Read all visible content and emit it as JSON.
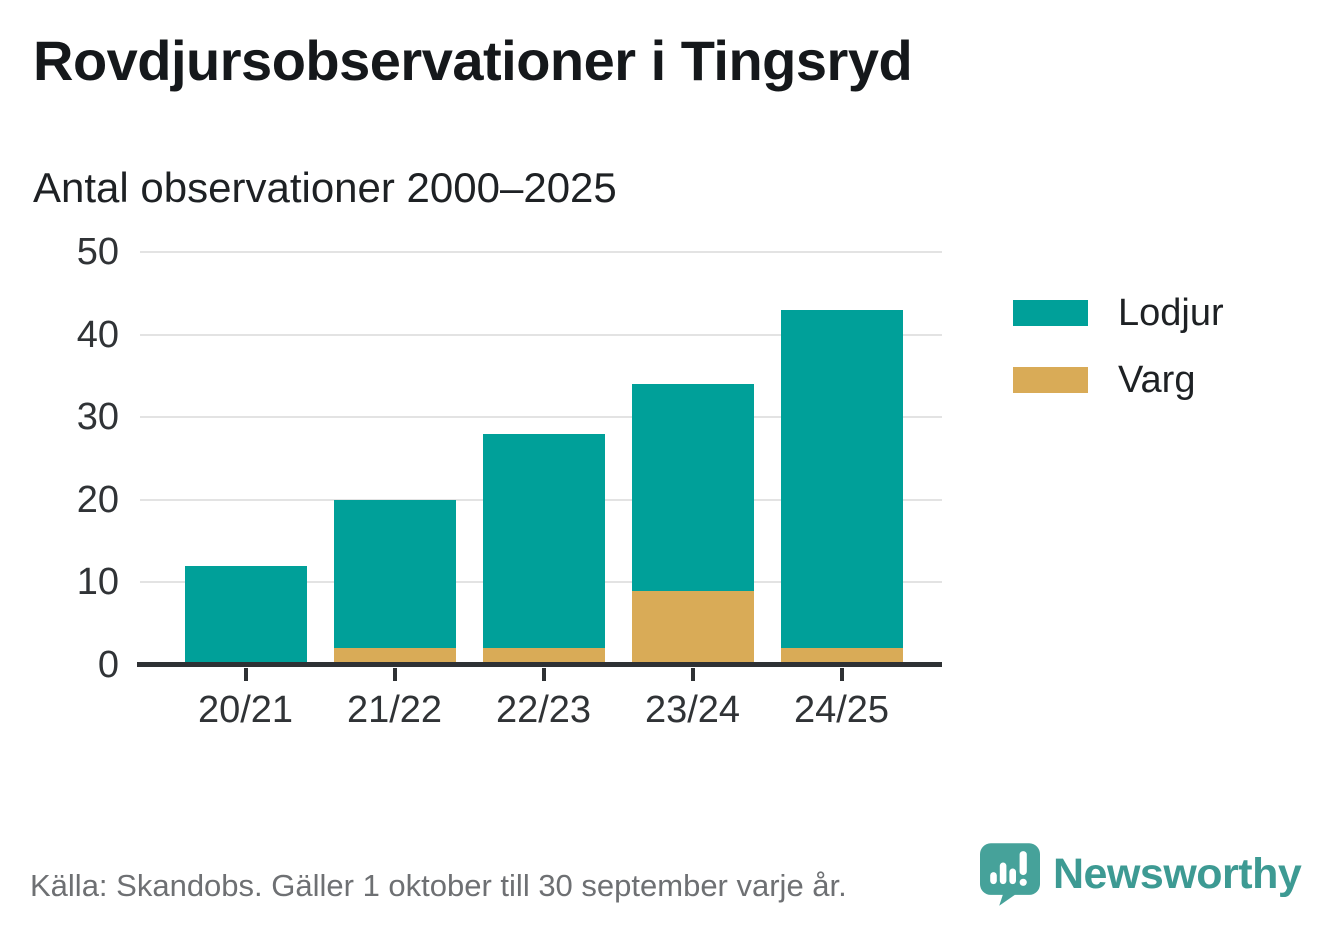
{
  "header": {
    "title": "Rovdjursobservationer i Tingsryd",
    "subtitle": "Antal observationer 2000–2025"
  },
  "chart_data": {
    "type": "bar",
    "stacked": true,
    "title": "Rovdjursobservationer i Tingsryd",
    "subtitle": "Antal observationer 2000–2025",
    "categories": [
      "20/21",
      "21/22",
      "22/23",
      "23/24",
      "24/25"
    ],
    "series": [
      {
        "name": "Varg",
        "color": "#d9ab57",
        "values": [
          0,
          2,
          2,
          9,
          2
        ]
      },
      {
        "name": "Lodjur",
        "color": "#00a099",
        "values": [
          12,
          18,
          26,
          25,
          41
        ]
      }
    ],
    "totals": [
      12,
      20,
      28,
      34,
      43
    ],
    "ylim": [
      0,
      50
    ],
    "y_ticks": [
      0,
      10,
      20,
      30,
      40,
      50
    ],
    "xlabel": "",
    "ylabel": "",
    "grid": true,
    "legend_position": "right",
    "legend_order": [
      "Lodjur",
      "Varg"
    ]
  },
  "legend": {
    "items": [
      {
        "label": "Lodjur",
        "color": "#00a099"
      },
      {
        "label": "Varg",
        "color": "#d9ab57"
      }
    ]
  },
  "footer": {
    "source": "Källa: Skandobs. Gäller 1 oktober till 30 september varje år.",
    "brand": "Newsworthy"
  },
  "colors": {
    "bar_teal": "#00a099",
    "bar_tan": "#d9ab57",
    "brand_teal": "#46a29a",
    "axis": "#2e3134",
    "grid": "#e3e3e3",
    "text_dark": "#15181b",
    "text_muted": "#6e7073"
  }
}
